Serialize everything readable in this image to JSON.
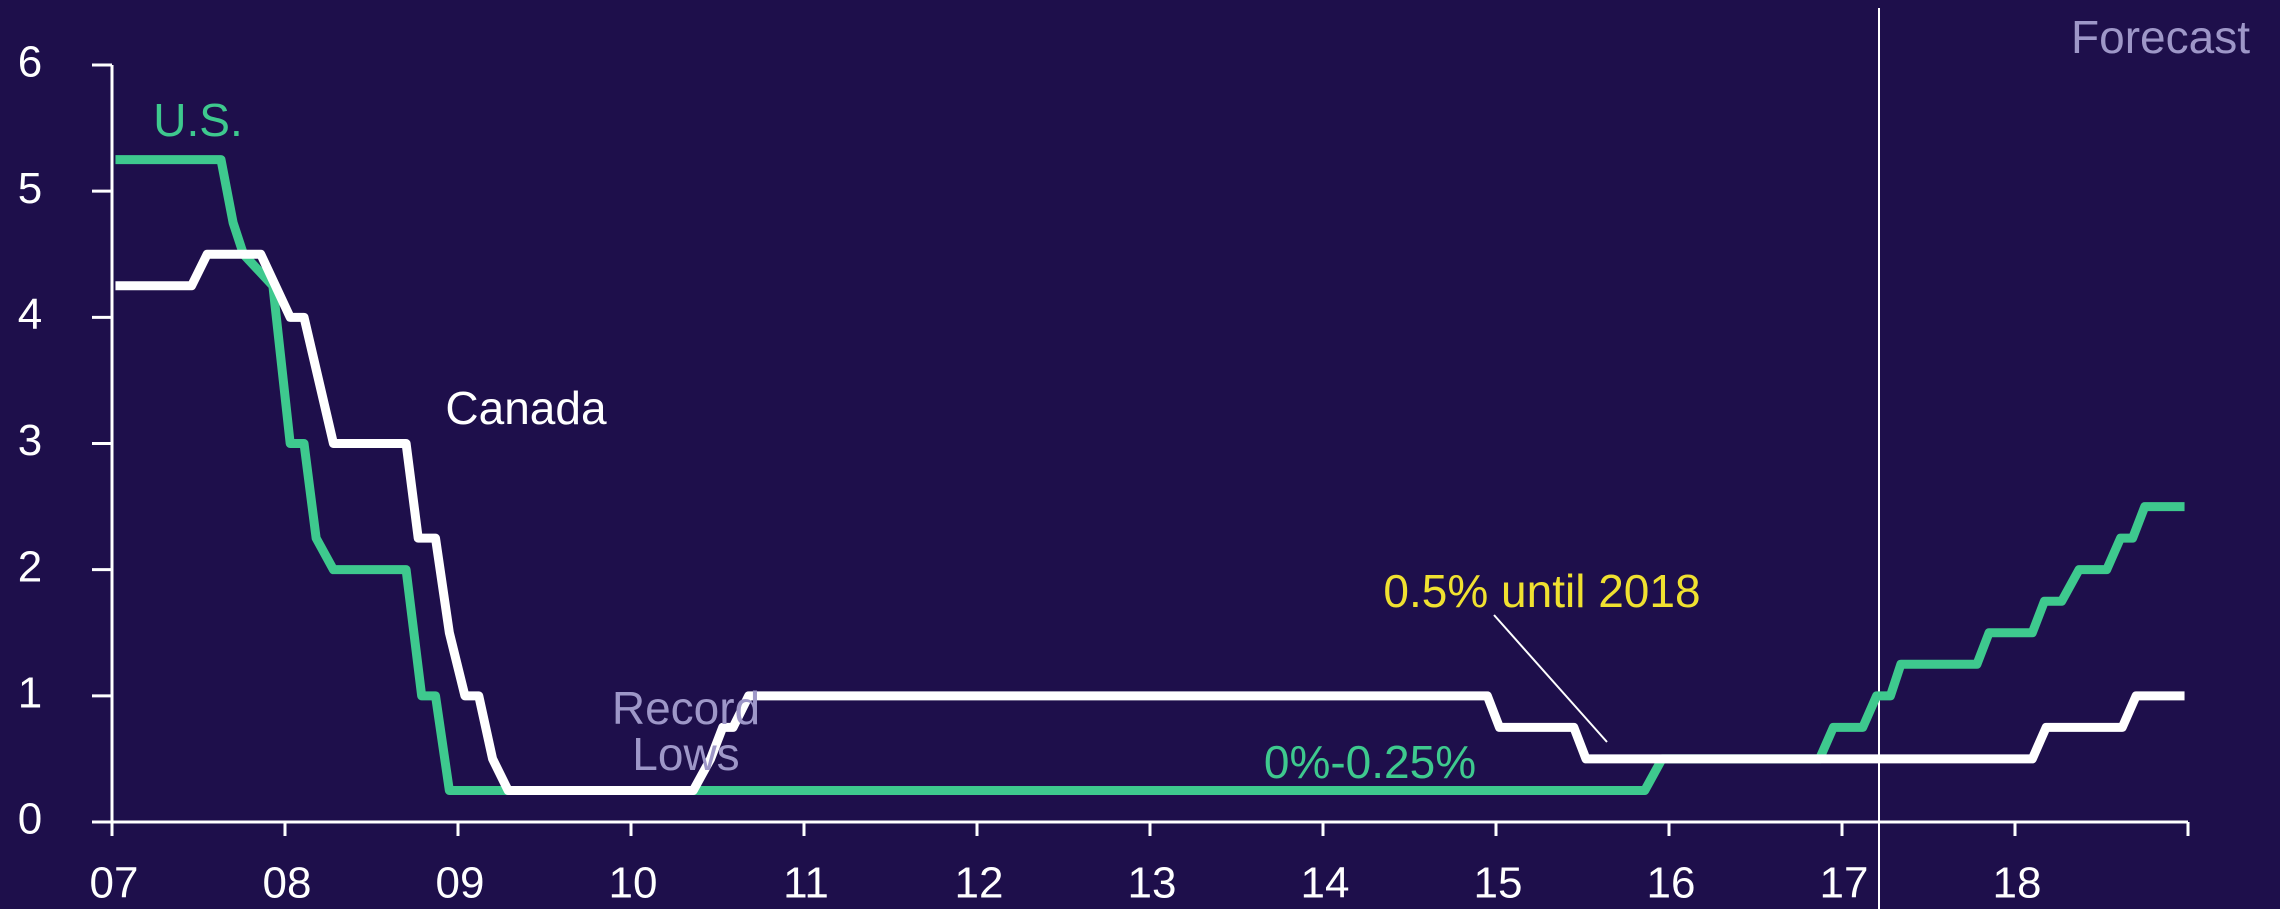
{
  "chart_data": {
    "type": "line",
    "xlim": [
      2007,
      2019
    ],
    "xticks": [
      {
        "value": 2007,
        "label": "07"
      },
      {
        "value": 2008,
        "label": "08"
      },
      {
        "value": 2009,
        "label": "09"
      },
      {
        "value": 2010,
        "label": "10"
      },
      {
        "value": 2011,
        "label": "11"
      },
      {
        "value": 2012,
        "label": "12"
      },
      {
        "value": 2013,
        "label": "13"
      },
      {
        "value": 2014,
        "label": "14"
      },
      {
        "value": 2015,
        "label": "15"
      },
      {
        "value": 2016,
        "label": "16"
      },
      {
        "value": 2017,
        "label": "17"
      },
      {
        "value": 2018,
        "label": "18"
      }
    ],
    "ylim": [
      0,
      6
    ],
    "yticks": [
      0,
      1,
      2,
      3,
      4,
      5,
      6
    ],
    "annotations": [
      "U.S.",
      "Canada",
      "Record",
      "Lows",
      "0%-0.25%",
      "0.5% until 2018",
      "Forecast"
    ],
    "series": [
      {
        "name": "U.S.",
        "color": "#3ec98e",
        "x": [
          2007.02,
          2007.63,
          2007.7,
          2007.76,
          2007.93,
          2008.03,
          2008.11,
          2008.18,
          2008.28,
          2008.7,
          2008.79,
          2008.87,
          2008.95,
          2015.86,
          2015.96,
          2016.87,
          2016.95,
          2017.12,
          2017.2,
          2017.28,
          2017.34,
          2017.78,
          2017.85,
          2018.1,
          2018.17,
          2018.27,
          2018.37,
          2018.53,
          2018.61,
          2018.68,
          2018.75,
          2018.98
        ],
        "values": [
          5.25,
          5.25,
          4.75,
          4.5,
          4.25,
          3.0,
          3.0,
          2.25,
          2.0,
          2.0,
          1.0,
          1.0,
          0.25,
          0.25,
          0.5,
          0.5,
          0.75,
          0.75,
          1.0,
          1.0,
          1.25,
          1.25,
          1.5,
          1.5,
          1.75,
          1.75,
          2.0,
          2.0,
          2.25,
          2.25,
          2.5,
          2.5
        ]
      },
      {
        "name": "Canada",
        "color": "#ffffff",
        "x": [
          2007.02,
          2007.46,
          2007.55,
          2007.86,
          2008.03,
          2008.11,
          2008.28,
          2008.7,
          2008.77,
          2008.87,
          2008.95,
          2009.04,
          2009.12,
          2009.2,
          2009.29,
          2010.36,
          2010.46,
          2010.53,
          2010.59,
          2010.68,
          2014.95,
          2015.02,
          2015.45,
          2015.52,
          2018.1,
          2018.18,
          2018.62,
          2018.7,
          2018.98
        ],
        "values": [
          4.25,
          4.25,
          4.5,
          4.5,
          4.0,
          4.0,
          3.0,
          3.0,
          2.25,
          2.25,
          1.5,
          1.0,
          1.0,
          0.5,
          0.25,
          0.25,
          0.5,
          0.75,
          0.75,
          1.0,
          1.0,
          0.75,
          0.75,
          0.5,
          0.5,
          0.75,
          0.75,
          1.0,
          1.0
        ]
      }
    ]
  }
}
